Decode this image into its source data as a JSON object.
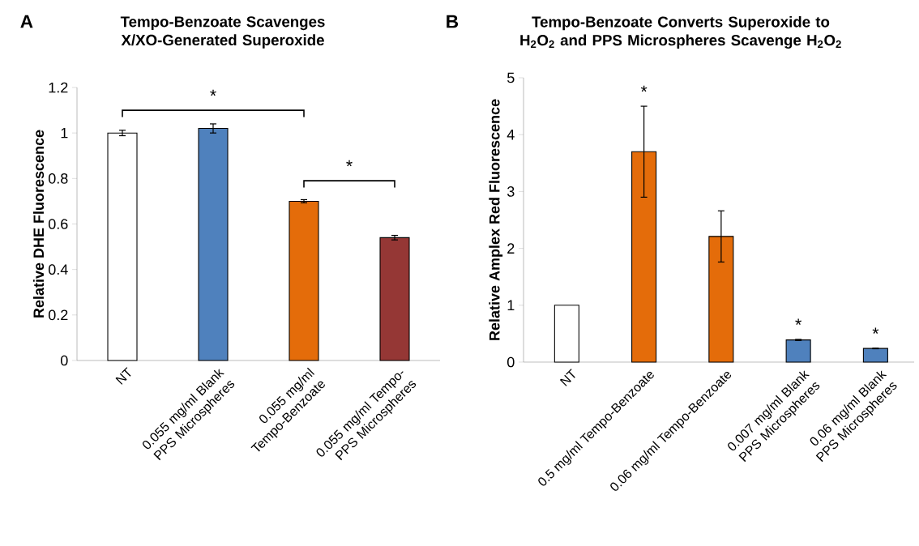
{
  "chart_data": [
    {
      "type": "bar",
      "title": "Tempo-Benzoate Scavenges X/XO-Generated Superoxide",
      "ylabel": "Relative DHE Fluorescence",
      "categories": [
        "NT",
        "0.055 mg/ml Blank PPS Microspheres",
        "0.055 mg/ml Tempo-Benzoate",
        "0.055 mg/ml Tempo-PPS Microspheres"
      ],
      "values": [
        1.0,
        1.02,
        0.7,
        0.54
      ],
      "errors": [
        0.012,
        0.02,
        0.007,
        0.01
      ],
      "colors": [
        "#ffffff",
        "#4f81bd",
        "#e46c0a",
        "#953735"
      ],
      "ylim": [
        0,
        1.2
      ],
      "yticks": [
        0,
        0.2,
        0.4,
        0.6,
        0.8,
        1,
        1.2
      ],
      "annotations": [
        "A",
        "*",
        "*"
      ]
    },
    {
      "type": "bar",
      "title": "Tempo-Benzoate Converts Superoxide to H$_{2}$O$_{2}$ and PPS Microspheres Scavenge H$_{2}$O$_{2}$",
      "ylabel": "Relative Amplex Red Fluorescence",
      "categories": [
        "NT",
        "0.5 mg/ml Tempo-Benzoate",
        "0.06 mg/ml Tempo-Benzoate",
        "0.007 mg/ml Blank PPS Microspheres",
        "0.06 mg/ml Blank PPS Microspheres"
      ],
      "values": [
        1.0,
        3.7,
        2.21,
        0.39,
        0.24
      ],
      "errors": [
        null,
        0.8,
        0.45,
        0.01,
        0.005
      ],
      "colors": [
        "#ffffff",
        "#e46c0a",
        "#e46c0a",
        "#4f81bd",
        "#4f81bd"
      ],
      "ylim": [
        0,
        5
      ],
      "yticks": [
        0,
        1,
        2,
        3,
        4,
        5
      ],
      "annotations": [
        "B",
        "*",
        "*",
        "*"
      ]
    }
  ]
}
